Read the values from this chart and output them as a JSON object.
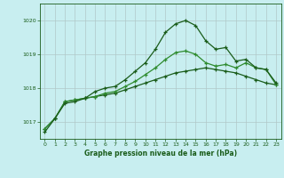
{
  "title": "Graphe pression niveau de la mer (hPa)",
  "background_color": "#c8eef0",
  "grid_color": "#b0c8c8",
  "line_color_dark": "#1a5c1a",
  "line_color_light": "#2e8b2e",
  "xlim": [
    -0.5,
    23.5
  ],
  "ylim": [
    1016.5,
    1020.5
  ],
  "yticks": [
    1017,
    1018,
    1019,
    1020
  ],
  "xticks": [
    0,
    1,
    2,
    3,
    4,
    5,
    6,
    7,
    8,
    9,
    10,
    11,
    12,
    13,
    14,
    15,
    16,
    17,
    18,
    19,
    20,
    21,
    22,
    23
  ],
  "series1_x": [
    0,
    1,
    2,
    3,
    4,
    5,
    6,
    7,
    8,
    9,
    10,
    11,
    12,
    13,
    14,
    15,
    16,
    17,
    18,
    19,
    20,
    21,
    22,
    23
  ],
  "series1_y": [
    1016.8,
    1017.1,
    1017.6,
    1017.65,
    1017.7,
    1017.75,
    1017.8,
    1017.85,
    1017.95,
    1018.05,
    1018.15,
    1018.25,
    1018.35,
    1018.45,
    1018.5,
    1018.55,
    1018.6,
    1018.55,
    1018.5,
    1018.45,
    1018.35,
    1018.25,
    1018.15,
    1018.1
  ],
  "series2_x": [
    0,
    1,
    2,
    3,
    4,
    5,
    6,
    7,
    8,
    9,
    10,
    11,
    12,
    13,
    14,
    15,
    16,
    17,
    18,
    19,
    20,
    21,
    22,
    23
  ],
  "series2_y": [
    1016.8,
    1017.1,
    1017.6,
    1017.65,
    1017.7,
    1017.75,
    1017.85,
    1017.9,
    1018.05,
    1018.2,
    1018.4,
    1018.6,
    1018.85,
    1019.05,
    1019.1,
    1019.0,
    1018.75,
    1018.65,
    1018.7,
    1018.6,
    1018.75,
    1018.6,
    1018.55,
    1018.1
  ],
  "series3_x": [
    0,
    1,
    2,
    3,
    4,
    5,
    6,
    7,
    8,
    9,
    10,
    11,
    12,
    13,
    14,
    15,
    16,
    17,
    18,
    19,
    20,
    21,
    22,
    23
  ],
  "series3_y": [
    1016.7,
    1017.1,
    1017.55,
    1017.6,
    1017.7,
    1017.9,
    1018.0,
    1018.05,
    1018.25,
    1018.5,
    1018.75,
    1019.15,
    1019.65,
    1019.9,
    1020.0,
    1019.85,
    1019.4,
    1019.15,
    1019.2,
    1018.8,
    1018.85,
    1018.6,
    1018.55,
    1018.15
  ]
}
